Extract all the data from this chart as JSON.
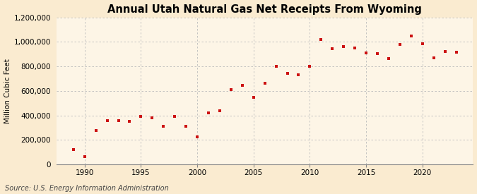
{
  "title": "Annual Utah Natural Gas Net Receipts From Wyoming",
  "ylabel": "Million Cubic Feet",
  "source": "Source: U.S. Energy Information Administration",
  "background_color": "#faebd0",
  "plot_bg_color": "#fdf5e6",
  "marker_color": "#cc1111",
  "years": [
    1989,
    1990,
    1991,
    1992,
    1993,
    1994,
    1995,
    1996,
    1997,
    1998,
    1999,
    2000,
    2001,
    2002,
    2003,
    2004,
    2005,
    2006,
    2007,
    2008,
    2009,
    2010,
    2011,
    2012,
    2013,
    2014,
    2015,
    2016,
    2017,
    2018,
    2019,
    2020,
    2021,
    2022,
    2023
  ],
  "values": [
    120000,
    65000,
    280000,
    355000,
    360000,
    350000,
    395000,
    380000,
    310000,
    390000,
    310000,
    225000,
    420000,
    440000,
    610000,
    645000,
    545000,
    660000,
    800000,
    745000,
    730000,
    800000,
    1020000,
    945000,
    960000,
    950000,
    910000,
    905000,
    865000,
    980000,
    1050000,
    985000,
    870000,
    920000,
    915000
  ],
  "ylim": [
    0,
    1200000
  ],
  "yticks": [
    0,
    200000,
    400000,
    600000,
    800000,
    1000000,
    1200000
  ],
  "xticks": [
    1990,
    1995,
    2000,
    2005,
    2010,
    2015,
    2020
  ],
  "xlim": [
    1987.5,
    2024.5
  ],
  "grid_color": "#bbbbbb",
  "title_fontsize": 10.5,
  "tick_fontsize": 7.5,
  "ylabel_fontsize": 7.5,
  "source_fontsize": 7
}
